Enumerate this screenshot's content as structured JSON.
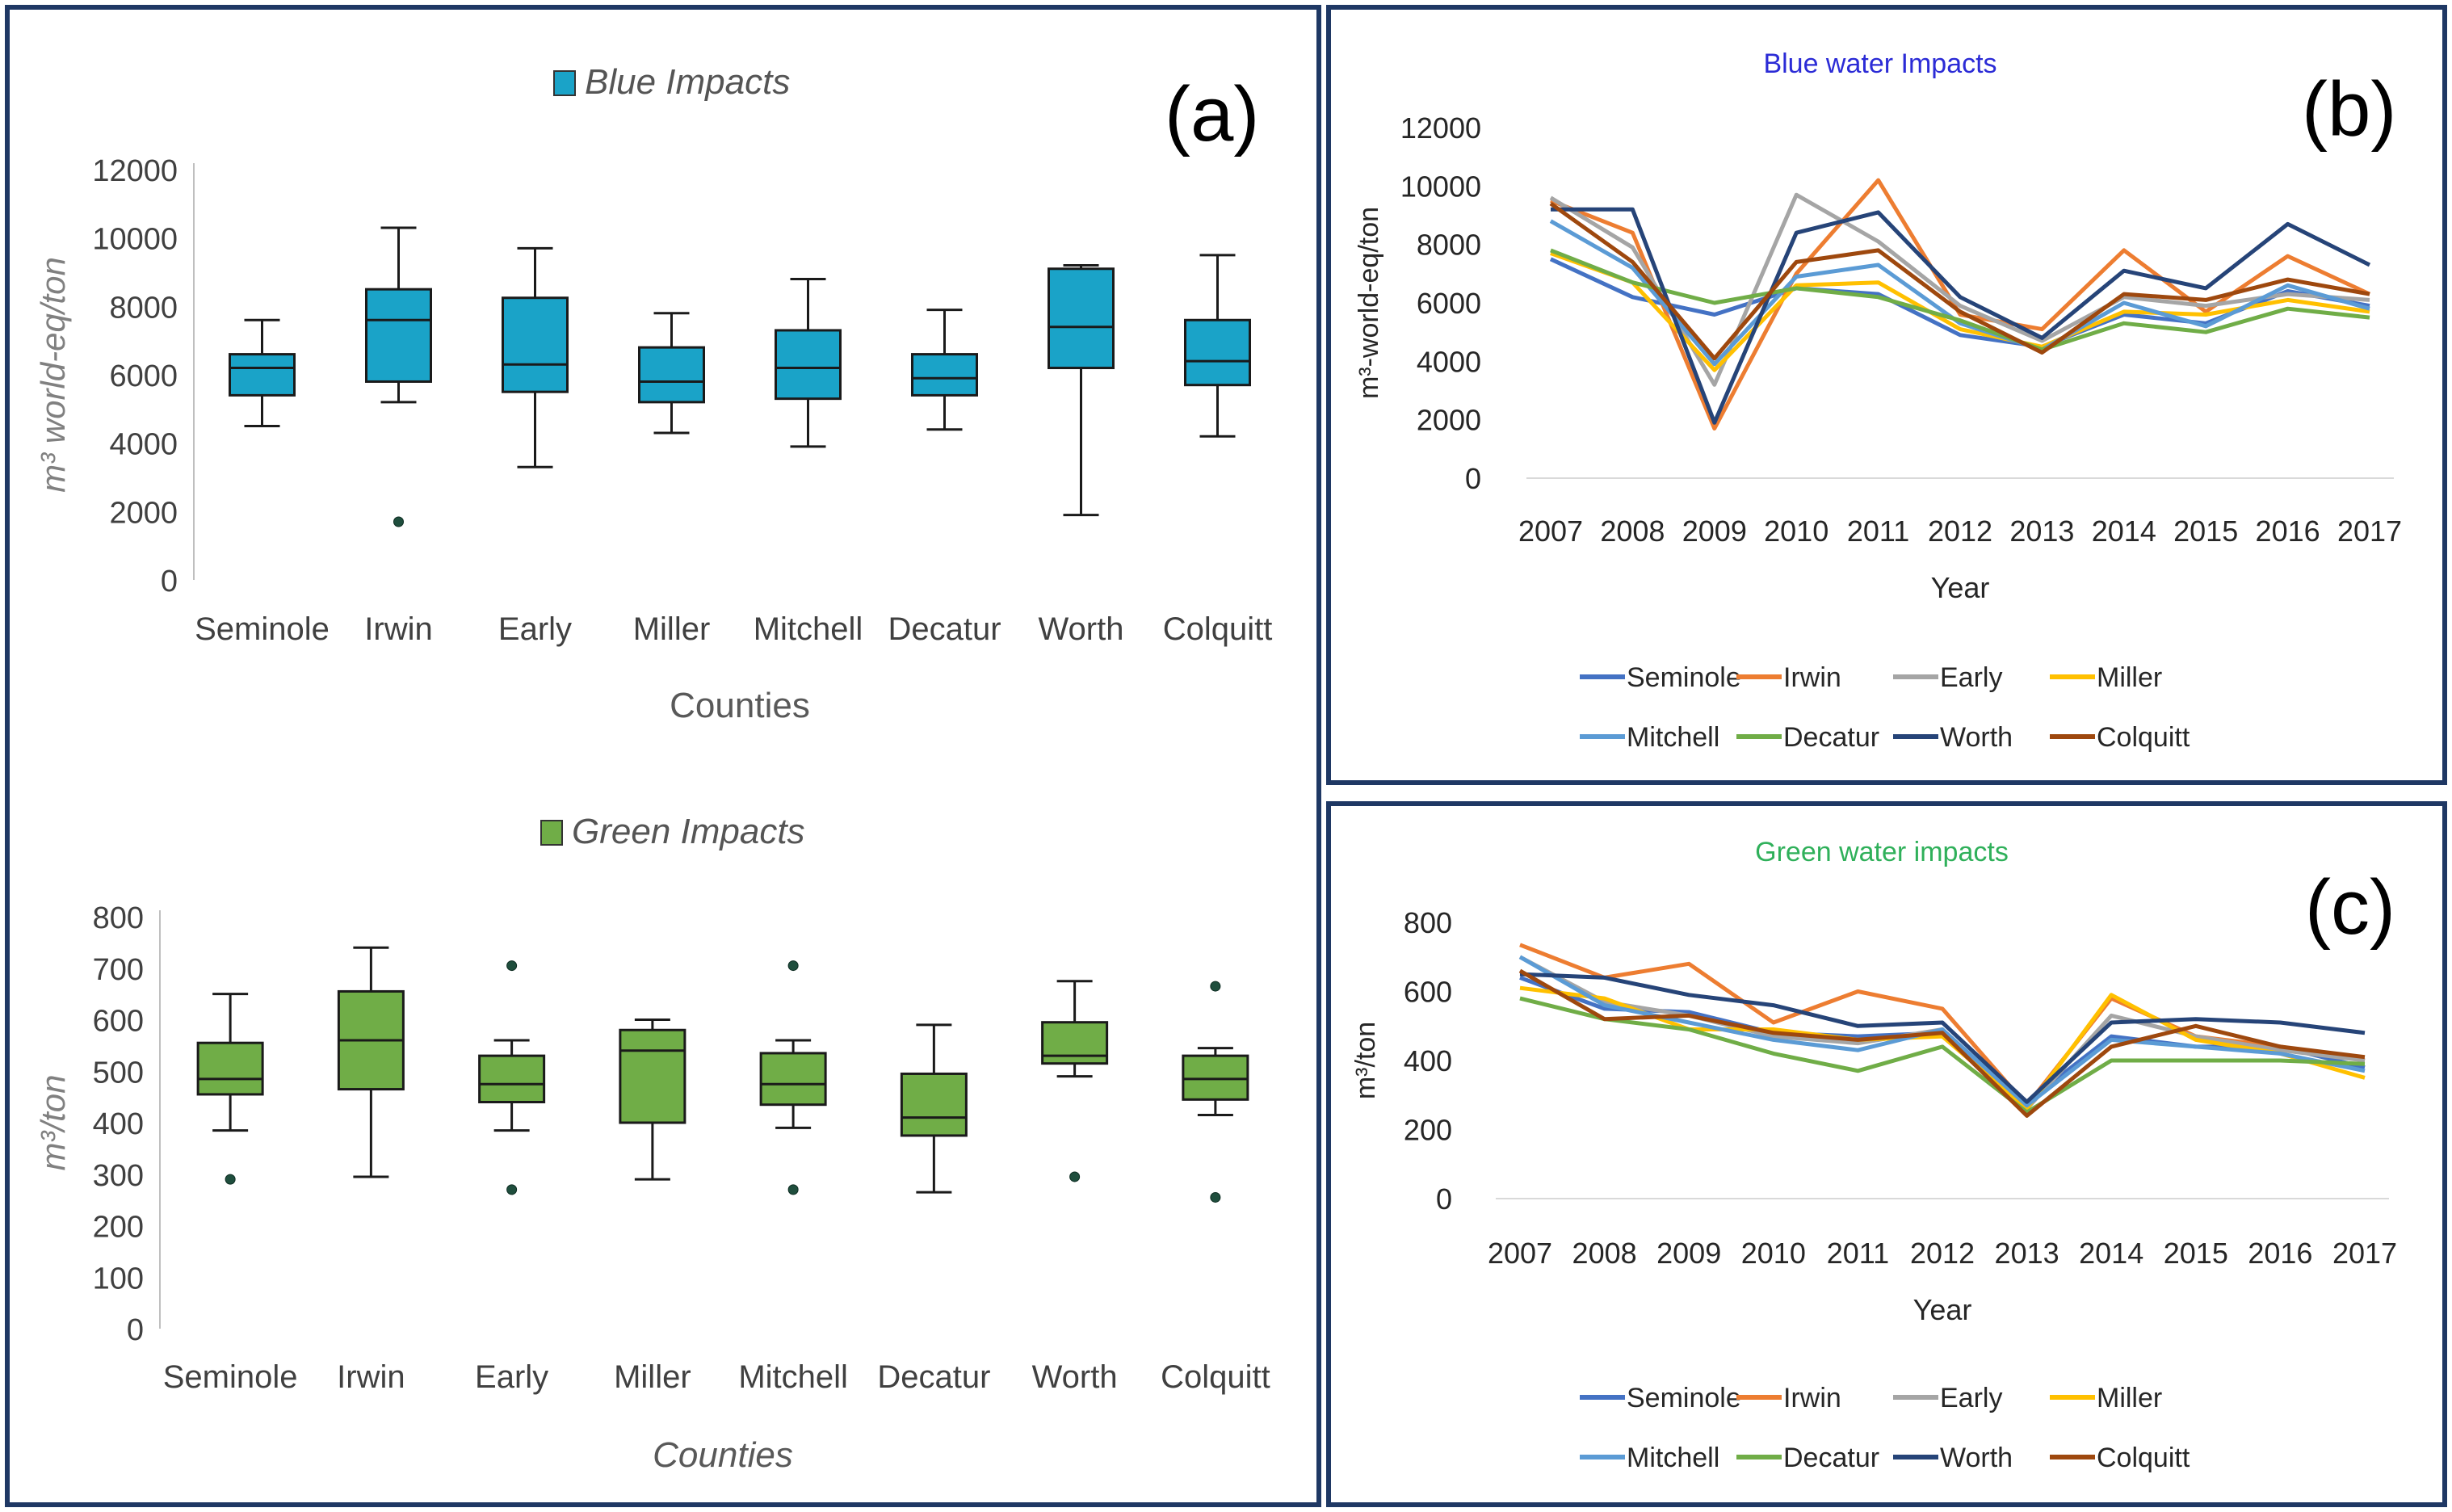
{
  "chart_data": [
    {
      "id": "a-blue",
      "panel_label": "(a)",
      "type": "box",
      "title": "Blue Impacts",
      "color": "#1aa3c8",
      "title_color": "#555555",
      "ylabel": "m³ world-eq/ton",
      "xlabel": "Counties",
      "ylim": [
        0,
        12000
      ],
      "yticks": [
        0,
        2000,
        4000,
        6000,
        8000,
        10000,
        12000
      ],
      "categories": [
        "Seminole",
        "Irwin",
        "Early",
        "Miller",
        "Mitchell",
        "Decatur",
        "Worth",
        "Colquitt"
      ],
      "boxes": [
        {
          "min": 4500,
          "q1": 5400,
          "median": 6200,
          "q3": 6600,
          "max": 7600,
          "outliers": []
        },
        {
          "min": 5200,
          "q1": 5800,
          "median": 7600,
          "q3": 8500,
          "max": 10300,
          "outliers": [
            1700
          ]
        },
        {
          "min": 3300,
          "q1": 5500,
          "median": 6300,
          "q3": 8250,
          "max": 9700,
          "outliers": []
        },
        {
          "min": 4300,
          "q1": 5200,
          "median": 5800,
          "q3": 6800,
          "max": 7800,
          "outliers": []
        },
        {
          "min": 3900,
          "q1": 5300,
          "median": 6200,
          "q3": 7300,
          "max": 8800,
          "outliers": []
        },
        {
          "min": 4400,
          "q1": 5400,
          "median": 5900,
          "q3": 6600,
          "max": 7900,
          "outliers": []
        },
        {
          "min": 1900,
          "q1": 6200,
          "median": 7400,
          "q3": 9100,
          "max": 9200,
          "outliers": []
        },
        {
          "min": 4200,
          "q1": 5700,
          "median": 6400,
          "q3": 7600,
          "max": 9500,
          "outliers": []
        }
      ]
    },
    {
      "id": "a-green",
      "type": "box",
      "title": "Green Impacts",
      "color": "#70ad47",
      "title_color": "#555555",
      "ylabel": "m³/ton",
      "xlabel": "Counties",
      "ylim": [
        0,
        800
      ],
      "yticks": [
        0,
        100,
        200,
        300,
        400,
        500,
        600,
        700,
        800
      ],
      "categories": [
        "Seminole",
        "Irwin",
        "Early",
        "Miller",
        "Mitchell",
        "Decatur",
        "Worth",
        "Colquitt"
      ],
      "boxes": [
        {
          "min": 385,
          "q1": 455,
          "median": 485,
          "q3": 555,
          "max": 650,
          "outliers": [
            290
          ]
        },
        {
          "min": 295,
          "q1": 465,
          "median": 560,
          "q3": 655,
          "max": 740,
          "outliers": []
        },
        {
          "min": 385,
          "q1": 440,
          "median": 475,
          "q3": 530,
          "max": 560,
          "outliers": [
            705,
            270
          ]
        },
        {
          "min": 290,
          "q1": 400,
          "median": 540,
          "q3": 580,
          "max": 600,
          "outliers": []
        },
        {
          "min": 390,
          "q1": 435,
          "median": 475,
          "q3": 535,
          "max": 560,
          "outliers": [
            705,
            270
          ]
        },
        {
          "min": 265,
          "q1": 375,
          "median": 410,
          "q3": 495,
          "max": 590,
          "outliers": []
        },
        {
          "min": 490,
          "q1": 515,
          "median": 530,
          "q3": 595,
          "max": 675,
          "outliers": [
            295
          ]
        },
        {
          "min": 415,
          "q1": 445,
          "median": 485,
          "q3": 530,
          "max": 545,
          "outliers": [
            665,
            255
          ]
        }
      ]
    },
    {
      "id": "b",
      "panel_label": "(b)",
      "type": "line",
      "title": "Blue water Impacts",
      "title_color": "#2b2bd6",
      "ylabel": "m³-world-eq/ton",
      "xlabel": "Year",
      "ylim": [
        0,
        12000
      ],
      "yticks": [
        0,
        2000,
        4000,
        6000,
        8000,
        10000,
        12000
      ],
      "x": [
        "2007",
        "2008",
        "2009",
        "2010",
        "2011",
        "2012",
        "2013",
        "2014",
        "2015",
        "2016",
        "2017"
      ],
      "series": [
        {
          "name": "Seminole",
          "color": "#4472c4",
          "values": [
            7500,
            6200,
            5600,
            6500,
            6300,
            4900,
            4500,
            5600,
            5300,
            6400,
            5900
          ]
        },
        {
          "name": "Irwin",
          "color": "#ed7d31",
          "values": [
            9500,
            8400,
            1700,
            7000,
            10200,
            5600,
            5100,
            7800,
            5700,
            7600,
            6300
          ]
        },
        {
          "name": "Early",
          "color": "#a5a5a5",
          "values": [
            9600,
            7900,
            3200,
            9700,
            8100,
            5900,
            4700,
            6200,
            5900,
            6300,
            6100
          ]
        },
        {
          "name": "Miller",
          "color": "#ffc000",
          "values": [
            7700,
            6700,
            3700,
            6600,
            6700,
            5100,
            4500,
            5700,
            5600,
            6100,
            5700
          ]
        },
        {
          "name": "Mitchell",
          "color": "#5b9bd5",
          "values": [
            8800,
            7200,
            3900,
            6900,
            7300,
            5300,
            4400,
            6000,
            5200,
            6600,
            5800
          ]
        },
        {
          "name": "Decatur",
          "color": "#70ad47",
          "values": [
            7800,
            6700,
            6000,
            6500,
            6200,
            5400,
            4400,
            5300,
            5000,
            5800,
            5500
          ]
        },
        {
          "name": "Worth",
          "color": "#264478",
          "values": [
            9200,
            9200,
            1900,
            8400,
            9100,
            6200,
            4800,
            7100,
            6500,
            8700,
            7300
          ]
        },
        {
          "name": "Colquitt",
          "color": "#9e480e",
          "values": [
            9400,
            7400,
            4100,
            7400,
            7800,
            5700,
            4300,
            6300,
            6100,
            6800,
            6300
          ]
        }
      ]
    },
    {
      "id": "c",
      "panel_label": "(c)",
      "type": "line",
      "title": "Green water impacts",
      "title_color": "#2fb05a",
      "ylabel": "m³/ton",
      "xlabel": "Year",
      "ylim": [
        0,
        800
      ],
      "yticks": [
        0,
        200,
        400,
        600,
        800
      ],
      "x": [
        "2007",
        "2008",
        "2009",
        "2010",
        "2011",
        "2012",
        "2013",
        "2014",
        "2015",
        "2016",
        "2017"
      ],
      "series": [
        {
          "name": "Seminole",
          "color": "#4472c4",
          "values": [
            640,
            550,
            540,
            480,
            470,
            480,
            280,
            470,
            440,
            440,
            380
          ]
        },
        {
          "name": "Irwin",
          "color": "#ed7d31",
          "values": [
            735,
            640,
            680,
            510,
            600,
            550,
            270,
            580,
            470,
            440,
            400
          ]
        },
        {
          "name": "Early",
          "color": "#a5a5a5",
          "values": [
            700,
            570,
            530,
            470,
            450,
            490,
            260,
            530,
            470,
            430,
            400
          ]
        },
        {
          "name": "Miller",
          "color": "#ffc000",
          "values": [
            610,
            580,
            490,
            490,
            460,
            470,
            260,
            590,
            460,
            420,
            350
          ]
        },
        {
          "name": "Mitchell",
          "color": "#5b9bd5",
          "values": [
            700,
            560,
            510,
            460,
            430,
            490,
            270,
            460,
            440,
            420,
            370
          ]
        },
        {
          "name": "Decatur",
          "color": "#70ad47",
          "values": [
            580,
            520,
            490,
            420,
            370,
            440,
            250,
            400,
            400,
            400,
            390
          ]
        },
        {
          "name": "Worth",
          "color": "#264478",
          "values": [
            650,
            640,
            590,
            560,
            500,
            510,
            280,
            510,
            520,
            510,
            480
          ]
        },
        {
          "name": "Colquitt",
          "color": "#9e480e",
          "values": [
            660,
            520,
            530,
            480,
            460,
            480,
            240,
            440,
            500,
            440,
            410
          ]
        }
      ]
    }
  ]
}
